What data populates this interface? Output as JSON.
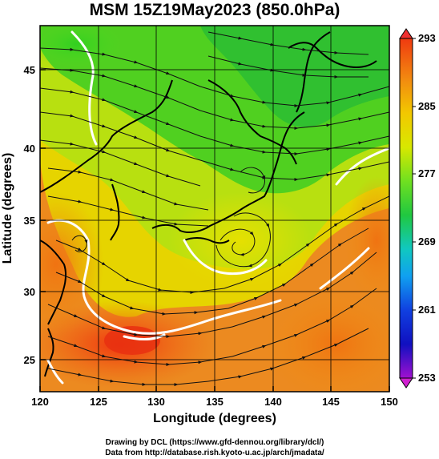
{
  "title": "MSM 15Z19May2023 (850.0hPa)",
  "xlabel": "Longitude (degrees)",
  "ylabel": "Latitude (degrees)",
  "x_ticks": [
    "120",
    "125",
    "130",
    "135",
    "140",
    "145",
    "150"
  ],
  "y_ticks": [
    "25",
    "30",
    "35",
    "40",
    "45"
  ],
  "colorbar": {
    "ticks": [
      "293",
      "285",
      "277",
      "269",
      "261",
      "253"
    ]
  },
  "credits": [
    "Drawing by DCL (https://www.gfd-dennou.org/library/dcl/)",
    "Data from http://database.rish.kyoto-u.ac.jp/arch/jmadata/"
  ],
  "map_data": {
    "type": "streamline-temperature-map",
    "lon_range": [
      120,
      150
    ],
    "lat_range": [
      23,
      48
    ],
    "temperature_range_K": [
      253,
      293
    ],
    "colors": {
      "warm": "#f04010",
      "mid": "#e8e000",
      "cool": "#40d020",
      "cold": "#1020e0",
      "min": "#d020d0",
      "max": "#f03030"
    }
  }
}
